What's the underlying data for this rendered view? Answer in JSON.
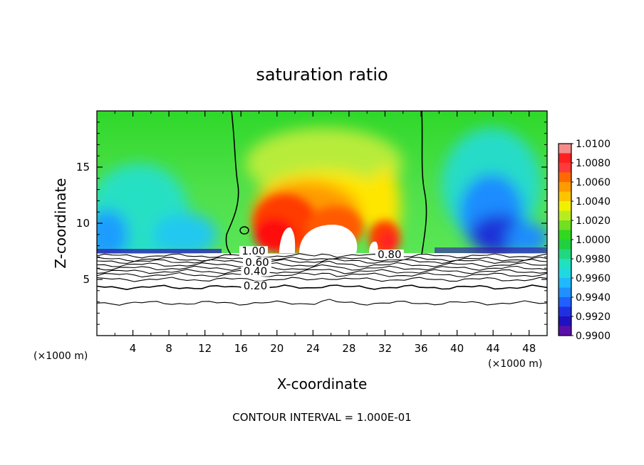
{
  "chart_data": {
    "type": "heatmap",
    "title": "saturation ratio",
    "xlabel": "X-coordinate",
    "ylabel": "Z-coordinate",
    "x_unit": "(×1000 m)",
    "z_unit": "(×1000 m)",
    "footer": "CONTOUR INTERVAL = 1.000E-01",
    "xlim": [
      0,
      50
    ],
    "ylim": [
      0,
      20
    ],
    "x_ticks": [
      "4",
      "8",
      "12",
      "16",
      "20",
      "24",
      "28",
      "32",
      "36",
      "40",
      "44",
      "48"
    ],
    "x_tick_values": [
      4,
      8,
      12,
      16,
      20,
      24,
      28,
      32,
      36,
      40,
      44,
      48
    ],
    "y_ticks": [
      "5",
      "10",
      "15"
    ],
    "y_tick_values": [
      5,
      10,
      15
    ],
    "colorbar": {
      "labels": [
        "1.0100",
        "1.0080",
        "1.0060",
        "1.0040",
        "1.0020",
        "1.0000",
        "0.9980",
        "0.9960",
        "0.9940",
        "0.9920",
        "0.9900"
      ],
      "min": 0.99,
      "max": 1.01
    },
    "contour_labels": [
      {
        "text": "1.00",
        "x": 17.4,
        "y": 7.2
      },
      {
        "text": "0.80",
        "x": 32.5,
        "y": 6.9
      },
      {
        "text": "0.60",
        "x": 17.8,
        "y": 6.2
      },
      {
        "text": "0.40",
        "x": 17.6,
        "y": 5.4
      },
      {
        "text": "0.20",
        "x": 17.6,
        "y": 4.1
      }
    ],
    "contour_levels": [
      1.0,
      0.8,
      0.6,
      0.4,
      0.2
    ],
    "layer_top_z": 7.3,
    "features": [
      {
        "name": "supersaturated plume",
        "x_range": [
          16,
          36
        ],
        "z_range": [
          7.3,
          16
        ],
        "peak": 1.008
      },
      {
        "name": "subsaturated region left",
        "x_range": [
          0,
          15
        ],
        "z_range": [
          7.3,
          12
        ],
        "min": 0.992
      },
      {
        "name": "subsaturated region right",
        "x_range": [
          38,
          50
        ],
        "z_range": [
          7.3,
          17
        ],
        "min": 0.99
      }
    ]
  }
}
